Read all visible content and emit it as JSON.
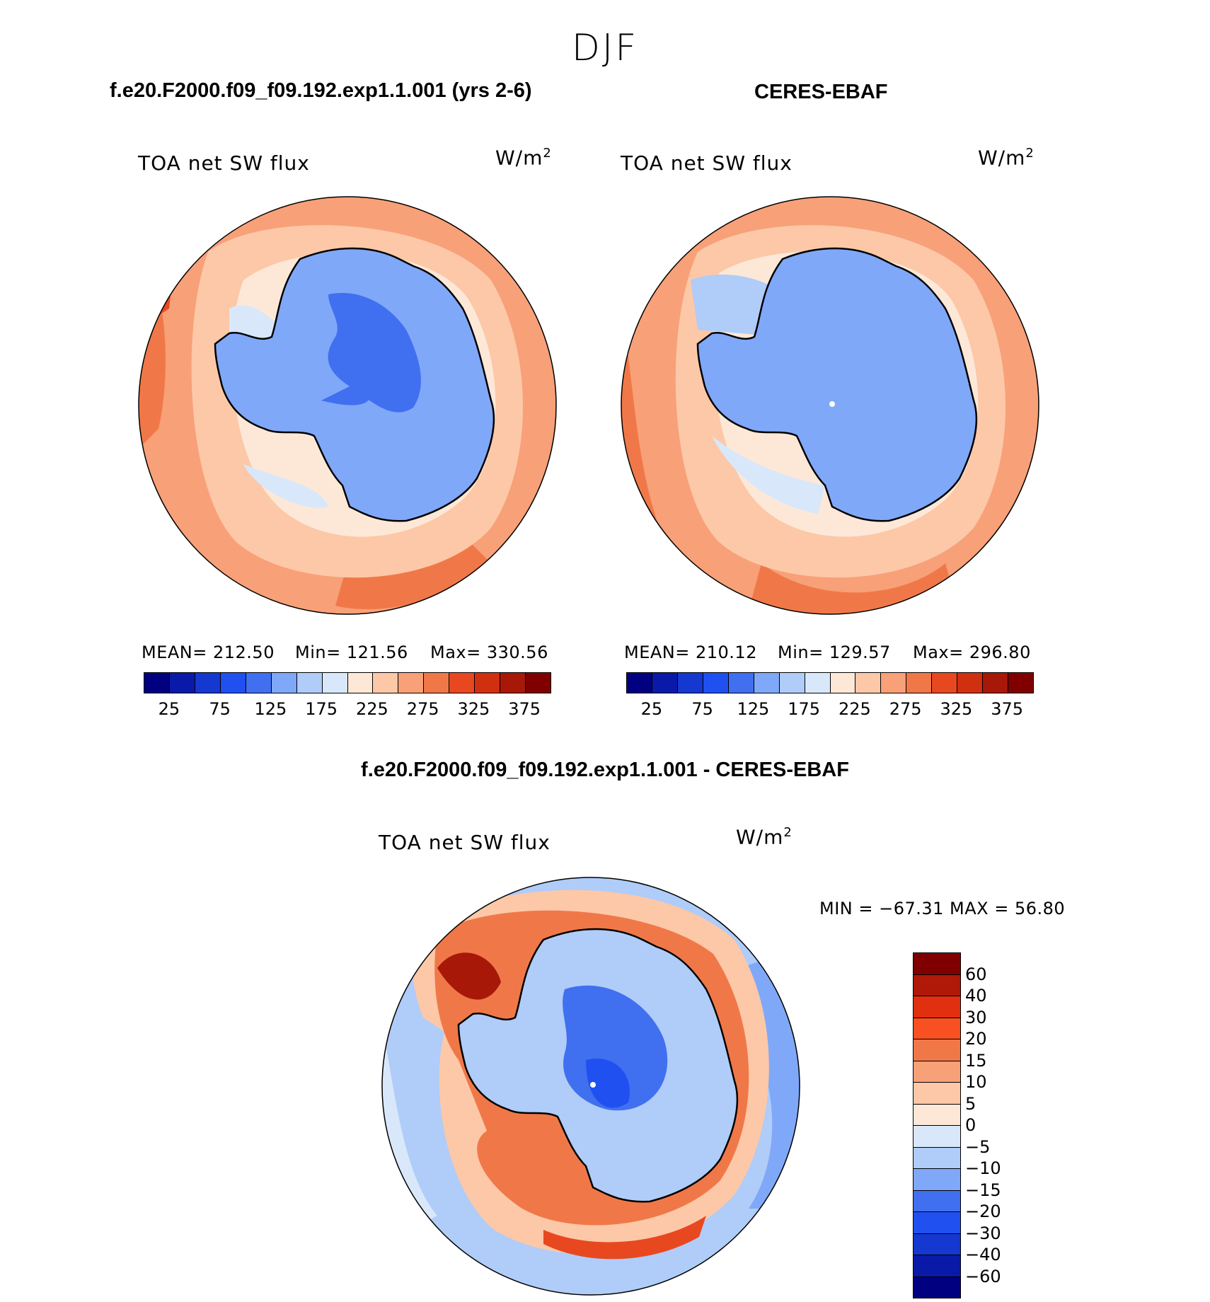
{
  "season": "DJF",
  "panel_left": {
    "title": "f.e20.F2000.f09_f09.192.exp1.1.001 (yrs 2-6)",
    "variable": "TOA net SW flux",
    "units_base": "W/m",
    "units_exp": "2",
    "stats": {
      "mean": "MEAN= 212.50",
      "min": "Min= 121.56",
      "max": "Max= 330.56"
    }
  },
  "panel_right": {
    "title": "CERES-EBAF",
    "variable": "TOA net SW flux",
    "units_base": "W/m",
    "units_exp": "2",
    "stats": {
      "mean": "MEAN= 210.12",
      "min": "Min= 129.57",
      "max": "Max= 296.80"
    }
  },
  "panel_diff": {
    "title": "f.e20.F2000.f09_f09.192.exp1.1.001 - CERES-EBAF",
    "variable": "TOA net SW flux",
    "units_base": "W/m",
    "units_exp": "2",
    "minmax": "MIN = −67.31  MAX =   56.80"
  },
  "abs_colorbar": {
    "colors": [
      "#000080",
      "#0a1aa8",
      "#1438d0",
      "#2050f0",
      "#4070f0",
      "#80a8f8",
      "#b0ccf8",
      "#d8e8fa",
      "#fde8d8",
      "#fcc8a8",
      "#f8a078",
      "#f07848",
      "#e84820",
      "#d03010",
      "#a81808",
      "#800000"
    ],
    "tick_labels": [
      "25",
      "75",
      "125",
      "175",
      "225",
      "275",
      "325",
      "375"
    ]
  },
  "diff_colorbar": {
    "colors": [
      "#800000",
      "#b01808",
      "#e03010",
      "#f85020",
      "#f07848",
      "#f8a078",
      "#fcc8a8",
      "#fde8d8",
      "#d8e8fa",
      "#b0ccf8",
      "#80a8f8",
      "#4070f0",
      "#2050f0",
      "#1438d0",
      "#0a1aa8",
      "#000080"
    ],
    "labels": [
      "60",
      "40",
      "30",
      "20",
      "15",
      "10",
      "5",
      "0",
      "−5",
      "−10",
      "−15",
      "−20",
      "−30",
      "−40",
      "−60"
    ]
  }
}
